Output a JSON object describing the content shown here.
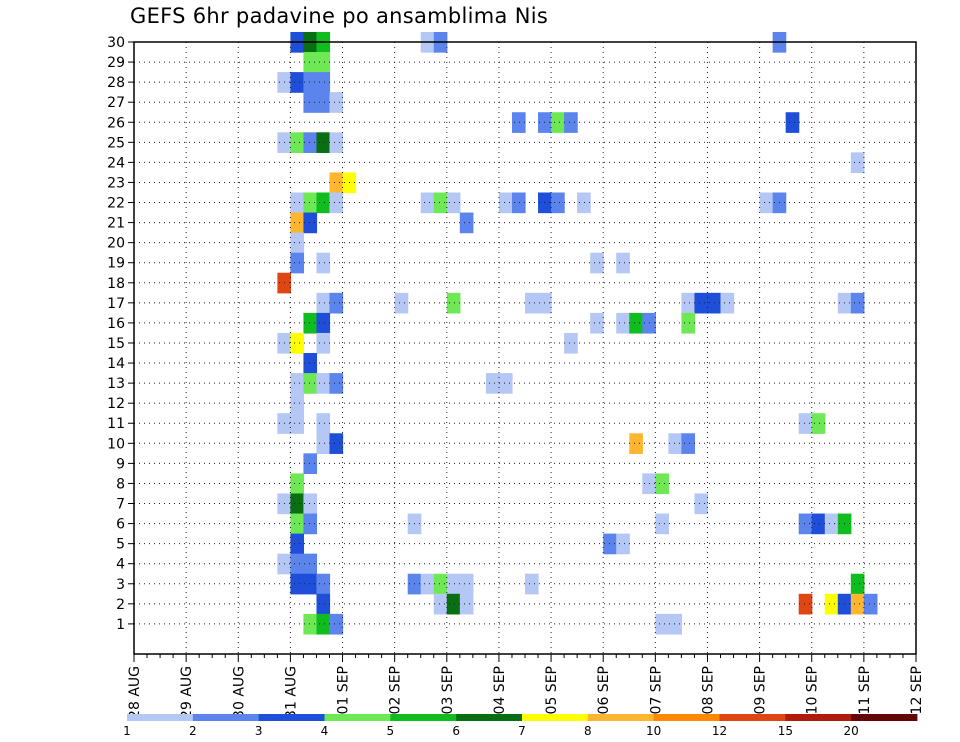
{
  "chart_data": {
    "type": "heatmap",
    "title": "GEFS 6hr padavine po ansamblima Nis",
    "xlabel": "",
    "ylabel": "",
    "x_tick_labels": [
      "28 AUG",
      "29 AUG",
      "30 AUG",
      "31 AUG",
      "01 SEP",
      "02 SEP",
      "03 SEP",
      "04 SEP",
      "05 SEP",
      "06 SEP",
      "07 SEP",
      "08 SEP",
      "09 SEP",
      "10 SEP",
      "11 SEP",
      "12 SEP"
    ],
    "xlim_days": [
      0,
      15
    ],
    "time_step_hours": 6,
    "y_tick_labels": [
      "1",
      "2",
      "3",
      "4",
      "5",
      "6",
      "7",
      "8",
      "9",
      "10",
      "11",
      "12",
      "13",
      "14",
      "15",
      "16",
      "17",
      "18",
      "19",
      "20",
      "21",
      "22",
      "23",
      "24",
      "25",
      "26",
      "27",
      "28",
      "29",
      "30"
    ],
    "ylim": [
      0,
      30
    ],
    "grid": true,
    "colorbar": {
      "labels": [
        "1",
        "2",
        "3",
        "4",
        "5",
        "6",
        "7",
        "8",
        "10",
        "12",
        "15",
        "20"
      ],
      "colors": [
        "#b5c8f5",
        "#5b85ec",
        "#1f4fd8",
        "#6ee854",
        "#0fbd1f",
        "#0a6e12",
        "#ffff00",
        "#ffb52e",
        "#ff8a00",
        "#e04514",
        "#b01c0c",
        "#640606"
      ]
    },
    "cells": [
      [
        12,
        30,
        2
      ],
      [
        13,
        30,
        5
      ],
      [
        14,
        30,
        4
      ],
      [
        22,
        30,
        0
      ],
      [
        23,
        30,
        1
      ],
      [
        49,
        30,
        1
      ],
      [
        13,
        29,
        3
      ],
      [
        14,
        29,
        3
      ],
      [
        11,
        28,
        0
      ],
      [
        12,
        28,
        2
      ],
      [
        13,
        28,
        1
      ],
      [
        14,
        28,
        1
      ],
      [
        13,
        27,
        1
      ],
      [
        14,
        27,
        1
      ],
      [
        15,
        27,
        0
      ],
      [
        29,
        26,
        1
      ],
      [
        31,
        26,
        1
      ],
      [
        32,
        26,
        3
      ],
      [
        33,
        26,
        1
      ],
      [
        50,
        26,
        2
      ],
      [
        11,
        25,
        0
      ],
      [
        12,
        25,
        3
      ],
      [
        13,
        25,
        1
      ],
      [
        14,
        25,
        5
      ],
      [
        15,
        25,
        0
      ],
      [
        55,
        24,
        0
      ],
      [
        15,
        23,
        7
      ],
      [
        16,
        23,
        6
      ],
      [
        12,
        22,
        0
      ],
      [
        13,
        22,
        3
      ],
      [
        14,
        22,
        4
      ],
      [
        15,
        22,
        0
      ],
      [
        22,
        22,
        0
      ],
      [
        23,
        22,
        3
      ],
      [
        24,
        22,
        0
      ],
      [
        28,
        22,
        0
      ],
      [
        29,
        22,
        1
      ],
      [
        31,
        22,
        2
      ],
      [
        32,
        22,
        1
      ],
      [
        34,
        22,
        0
      ],
      [
        48,
        22,
        0
      ],
      [
        49,
        22,
        1
      ],
      [
        12,
        21,
        7
      ],
      [
        13,
        21,
        2
      ],
      [
        25,
        21,
        1
      ],
      [
        12,
        20,
        0
      ],
      [
        12,
        19,
        1
      ],
      [
        14,
        19,
        0
      ],
      [
        35,
        19,
        0
      ],
      [
        37,
        19,
        0
      ],
      [
        11,
        18,
        9
      ],
      [
        14,
        17,
        0
      ],
      [
        15,
        17,
        1
      ],
      [
        20,
        17,
        0
      ],
      [
        24,
        17,
        3
      ],
      [
        30,
        17,
        0
      ],
      [
        31,
        17,
        0
      ],
      [
        42,
        17,
        0
      ],
      [
        43,
        17,
        2
      ],
      [
        44,
        17,
        2
      ],
      [
        45,
        17,
        0
      ],
      [
        54,
        17,
        0
      ],
      [
        55,
        17,
        1
      ],
      [
        13,
        16,
        4
      ],
      [
        14,
        16,
        2
      ],
      [
        35,
        16,
        0
      ],
      [
        37,
        16,
        0
      ],
      [
        38,
        16,
        4
      ],
      [
        39,
        16,
        1
      ],
      [
        42,
        16,
        3
      ],
      [
        11,
        15,
        0
      ],
      [
        12,
        15,
        6
      ],
      [
        14,
        15,
        0
      ],
      [
        33,
        15,
        0
      ],
      [
        13,
        14,
        2
      ],
      [
        12,
        13,
        0
      ],
      [
        13,
        13,
        3
      ],
      [
        14,
        13,
        0
      ],
      [
        15,
        13,
        1
      ],
      [
        27,
        13,
        0
      ],
      [
        28,
        13,
        0
      ],
      [
        12,
        12,
        0
      ],
      [
        11,
        11,
        0
      ],
      [
        12,
        11,
        0
      ],
      [
        14,
        11,
        0
      ],
      [
        51,
        11,
        0
      ],
      [
        52,
        11,
        3
      ],
      [
        14,
        10,
        0
      ],
      [
        15,
        10,
        2
      ],
      [
        38,
        10,
        7
      ],
      [
        41,
        10,
        0
      ],
      [
        42,
        10,
        1
      ],
      [
        13,
        9,
        1
      ],
      [
        12,
        8,
        3
      ],
      [
        39,
        8,
        0
      ],
      [
        40,
        8,
        3
      ],
      [
        11,
        7,
        0
      ],
      [
        12,
        7,
        5
      ],
      [
        13,
        7,
        0
      ],
      [
        43,
        7,
        0
      ],
      [
        12,
        6,
        3
      ],
      [
        13,
        6,
        1
      ],
      [
        21,
        6,
        0
      ],
      [
        40,
        6,
        0
      ],
      [
        51,
        6,
        1
      ],
      [
        52,
        6,
        2
      ],
      [
        53,
        6,
        0
      ],
      [
        54,
        6,
        4
      ],
      [
        12,
        5,
        2
      ],
      [
        36,
        5,
        1
      ],
      [
        37,
        5,
        0
      ],
      [
        11,
        4,
        0
      ],
      [
        12,
        4,
        1
      ],
      [
        13,
        4,
        1
      ],
      [
        12,
        3,
        2
      ],
      [
        13,
        3,
        2
      ],
      [
        14,
        3,
        1
      ],
      [
        21,
        3,
        1
      ],
      [
        22,
        3,
        0
      ],
      [
        23,
        3,
        3
      ],
      [
        24,
        3,
        0
      ],
      [
        25,
        3,
        0
      ],
      [
        30,
        3,
        0
      ],
      [
        55,
        3,
        4
      ],
      [
        14,
        2,
        2
      ],
      [
        23,
        2,
        0
      ],
      [
        24,
        2,
        5
      ],
      [
        25,
        2,
        0
      ],
      [
        51,
        2,
        9
      ],
      [
        53,
        2,
        6
      ],
      [
        54,
        2,
        2
      ],
      [
        55,
        2,
        7
      ],
      [
        56,
        2,
        1
      ],
      [
        13,
        1,
        3
      ],
      [
        14,
        1,
        4
      ],
      [
        15,
        1,
        1
      ],
      [
        40,
        1,
        0
      ],
      [
        41,
        1,
        0
      ]
    ]
  }
}
